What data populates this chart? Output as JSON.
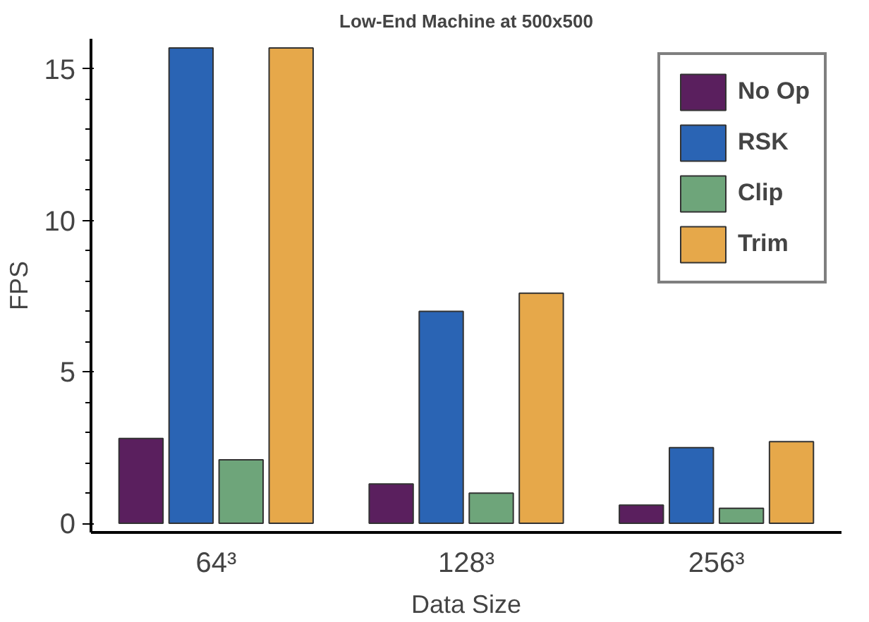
{
  "chart_data": {
    "type": "bar",
    "title": "Low-End Machine at 500x500",
    "xlabel": "Data Size",
    "ylabel": "FPS",
    "categories": [
      "64³",
      "128³",
      "256³"
    ],
    "series": [
      {
        "name": "No Op",
        "color": "#5a1f5e",
        "values": [
          2.8,
          1.3,
          0.6
        ]
      },
      {
        "name": "RSK",
        "color": "#2a64b4",
        "values": [
          15.7,
          7.0,
          2.5
        ]
      },
      {
        "name": "Clip",
        "color": "#6ea57a",
        "values": [
          2.1,
          1.0,
          0.5
        ]
      },
      {
        "name": "Trim",
        "color": "#e6a84a",
        "values": [
          15.7,
          7.6,
          2.7
        ]
      }
    ],
    "ylim": [
      -0.3,
      16
    ],
    "yticks": [
      0,
      {
        "value": 1,
        "label": null
      },
      {
        "value": 2,
        "label": null
      },
      {
        "value": 3,
        "label": null
      },
      {
        "value": 4,
        "label": null
      },
      5,
      {
        "value": 6,
        "label": null
      },
      {
        "value": 7,
        "label": null
      },
      {
        "value": 8,
        "label": null
      },
      {
        "value": 9,
        "label": null
      },
      10,
      {
        "value": 11,
        "label": null
      },
      {
        "value": 12,
        "label": null
      },
      {
        "value": 13,
        "label": null
      },
      {
        "value": 14,
        "label": null
      },
      15
    ],
    "grid": false,
    "legend": "top right"
  }
}
